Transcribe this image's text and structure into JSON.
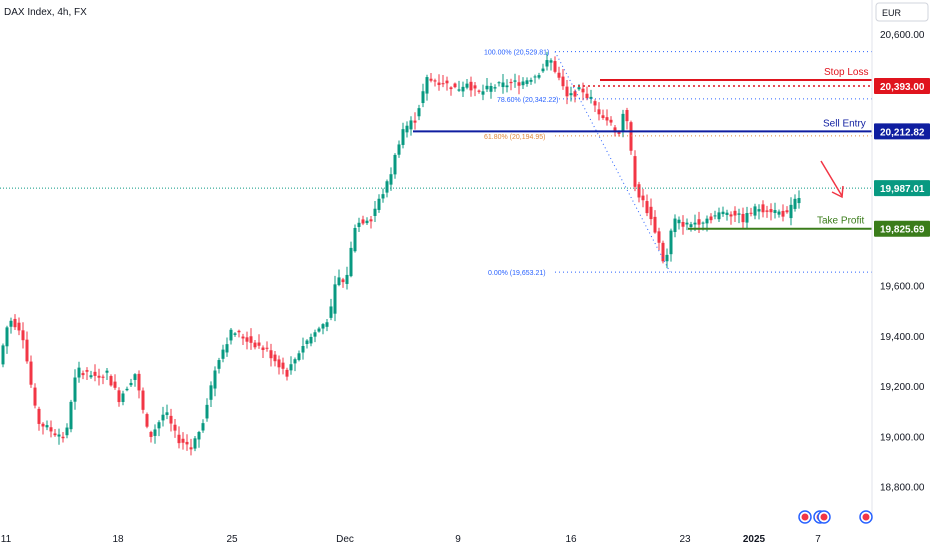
{
  "chart_data": {
    "type": "candlestick",
    "title": "DAX Index, 4h, FX",
    "currency": "EUR",
    "y_axis": {
      "range": [
        18700,
        20680
      ],
      "ticks": [
        20600,
        20400,
        20200,
        20000,
        19800,
        19600,
        19400,
        19200,
        19000,
        18800
      ],
      "tick_labels": [
        "20,600.00",
        "",
        "",
        "",
        "",
        "19,600.00",
        "19,400.00",
        "19,200.00",
        "19,000.00",
        "18,800.00"
      ]
    },
    "x_axis": {
      "tick_labels": [
        "11",
        "18",
        "25",
        "Dec",
        "9",
        "16",
        "23",
        "2025",
        "7"
      ]
    },
    "colors": {
      "up": "#089981",
      "down": "#f23645",
      "stop_loss": "#e0141e",
      "sell_entry": "#0f1ea0",
      "take_profit": "#3a7c1a",
      "fib": "#2962ff",
      "fib_mid": "#e08a3c",
      "current_price": "#089981",
      "arrow": "#f23645"
    },
    "levels": {
      "stop_loss": {
        "label": "Stop Loss",
        "value": 20393.0,
        "value_label": "20,393.00"
      },
      "sell_entry": {
        "label": "Sell Entry",
        "value": 20212.82,
        "value_label": "20,212.82"
      },
      "take_profit": {
        "label": "Take Profit",
        "value": 19825.69,
        "value_label": "19,825.69"
      }
    },
    "current_price": {
      "value": 19987.01,
      "value_label": "19,987.01"
    },
    "fibonacci": [
      {
        "label": "100.00% (20,529.81)",
        "value": 20529.81
      },
      {
        "label": "78.60% (20,342.22)",
        "value": 20342.22
      },
      {
        "label": "61.80% (20,194.95)",
        "value": 20194.95
      },
      {
        "label": "0.00% (19,653.21)",
        "value": 19653.21
      }
    ],
    "pattern_icons": [
      "event-icon",
      "event-icon",
      "event-icon"
    ]
  }
}
